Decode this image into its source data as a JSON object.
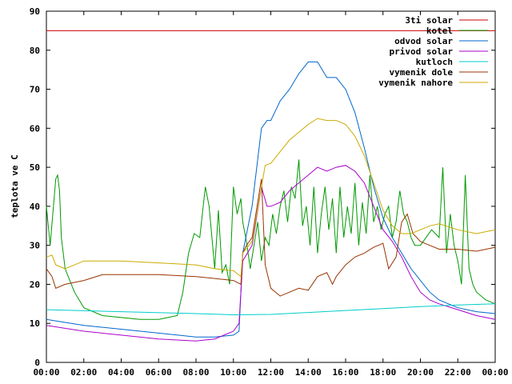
{
  "chart_data": {
    "type": "line",
    "title": "",
    "xlabel": "",
    "ylabel": "teplota ve C",
    "xlim": [
      0,
      24
    ],
    "ylim": [
      0,
      90
    ],
    "x_ticks": [
      0,
      2,
      4,
      6,
      8,
      10,
      12,
      14,
      16,
      18,
      20,
      22,
      24
    ],
    "x_tick_labels": [
      "00:00",
      "02:00",
      "04:00",
      "06:00",
      "08:00",
      "10:00",
      "12:00",
      "14:00",
      "16:00",
      "18:00",
      "20:00",
      "22:00",
      "00:00"
    ],
    "y_ticks": [
      0,
      10,
      20,
      30,
      40,
      50,
      60,
      70,
      80,
      90
    ],
    "grid": false,
    "legend_position": "top-right",
    "series": [
      {
        "name": "3ti solar",
        "color": "#cc0000",
        "x": [
          0,
          24
        ],
        "y": [
          85,
          85
        ]
      },
      {
        "name": "kotel",
        "color": "#009900",
        "x": [
          0,
          0.2,
          0.5,
          0.6,
          0.7,
          0.8,
          1.0,
          1.5,
          2.0,
          3.0,
          4.0,
          5.0,
          6.0,
          6.5,
          7.0,
          7.3,
          7.6,
          7.9,
          8.2,
          8.5,
          8.7,
          9.0,
          9.2,
          9.4,
          9.6,
          9.8,
          10.0,
          10.2,
          10.4,
          10.5,
          10.7,
          10.9,
          11.1,
          11.3,
          11.5,
          11.7,
          11.9,
          12.1,
          12.3,
          12.5,
          12.7,
          12.9,
          13.1,
          13.3,
          13.5,
          13.7,
          13.9,
          14.1,
          14.3,
          14.5,
          14.7,
          14.9,
          15.1,
          15.3,
          15.5,
          15.7,
          15.9,
          16.1,
          16.3,
          16.5,
          16.7,
          16.9,
          17.1,
          17.3,
          17.5,
          17.7,
          17.9,
          18.1,
          18.3,
          18.5,
          18.7,
          18.9,
          19.1,
          19.3,
          19.5,
          19.7,
          20.0,
          20.3,
          20.6,
          20.8,
          21.0,
          21.2,
          21.4,
          21.6,
          21.8,
          22.0,
          22.2,
          22.4,
          22.6,
          22.8,
          23.0,
          23.5,
          24.0
        ],
        "y": [
          40,
          30,
          47,
          48,
          44,
          32,
          24,
          18,
          14,
          12,
          11.5,
          11,
          11,
          11.5,
          12,
          18,
          28,
          33,
          32,
          45,
          40,
          24,
          39,
          23,
          25,
          20,
          45,
          38,
          42,
          36,
          31,
          24,
          30,
          36,
          26,
          32,
          30,
          38,
          33,
          40,
          44,
          36,
          45,
          42,
          52,
          35,
          40,
          30,
          45,
          28,
          38,
          45,
          34,
          42,
          28,
          45,
          32,
          40,
          33,
          46,
          30,
          41,
          33,
          48,
          36,
          40,
          34,
          38,
          40,
          32,
          36,
          44,
          38,
          36,
          32,
          30,
          30,
          32,
          34,
          33,
          32,
          50,
          28,
          38,
          30,
          26,
          20,
          48,
          24,
          20,
          18,
          16,
          15
        ]
      },
      {
        "name": "odvod solar",
        "color": "#0066cc",
        "x": [
          0,
          2,
          4,
          6,
          8,
          9,
          10,
          10.3,
          10.5,
          11.0,
          11.5,
          11.8,
          12.0,
          12.2,
          12.5,
          13.0,
          13.5,
          14.0,
          14.5,
          15.0,
          15.5,
          16.0,
          16.5,
          17.0,
          17.5,
          18.0,
          18.5,
          19.0,
          19.5,
          20.0,
          20.5,
          21.0,
          22.0,
          23.0,
          24.0
        ],
        "y": [
          11,
          9.5,
          8.5,
          7.5,
          6.5,
          6.5,
          7,
          8,
          28,
          40,
          60,
          62,
          62,
          64,
          67,
          70,
          74,
          77,
          77,
          73,
          73,
          70,
          64,
          55,
          45,
          37,
          32,
          28,
          24,
          21,
          18,
          16,
          14,
          13,
          12.5
        ]
      },
      {
        "name": "privod solar",
        "color": "#aa00cc",
        "x": [
          0,
          2,
          4,
          6,
          8,
          9,
          10,
          10.3,
          10.5,
          11.0,
          11.5,
          11.8,
          12.0,
          12.5,
          13.0,
          13.5,
          14.0,
          14.5,
          15.0,
          15.5,
          16.0,
          16.5,
          17.0,
          17.5,
          18.0,
          18.5,
          19.0,
          19.5,
          20.0,
          20.5,
          21.0,
          22.0,
          23.0,
          24.0
        ],
        "y": [
          9.5,
          8,
          7,
          6,
          5.5,
          6,
          8,
          10,
          26,
          30,
          45,
          40,
          40,
          41,
          44,
          46,
          48,
          50,
          49,
          50,
          50.5,
          49,
          46,
          40,
          34,
          31,
          27,
          22,
          18,
          16,
          15,
          13.5,
          12,
          11
        ]
      },
      {
        "name": "kutloch",
        "color": "#00cccc",
        "x": [
          0,
          4,
          8,
          10,
          12,
          14,
          16,
          18,
          20,
          22,
          24
        ],
        "y": [
          13.5,
          13,
          12.5,
          12.2,
          12.3,
          12.8,
          13.3,
          13.8,
          14.3,
          14.7,
          15
        ]
      },
      {
        "name": "vymenik dole",
        "color": "#993300",
        "x": [
          0,
          0.3,
          0.5,
          1.0,
          2.0,
          3.0,
          4.0,
          6.0,
          8.0,
          9.0,
          10.0,
          10.4,
          10.5,
          10.7,
          11.0,
          11.2,
          11.5,
          11.7,
          12.0,
          12.5,
          13.0,
          13.5,
          14.0,
          14.5,
          15.0,
          15.3,
          15.5,
          16.0,
          16.5,
          17.0,
          17.5,
          18.0,
          18.3,
          18.7,
          19.0,
          19.3,
          19.6,
          20.0,
          20.5,
          21.0,
          22.0,
          23.0,
          24.0
        ],
        "y": [
          24,
          22,
          19,
          20,
          21,
          22.5,
          22.5,
          22.5,
          22,
          21.5,
          21,
          20,
          28,
          30,
          32,
          38,
          47,
          25,
          19,
          17,
          18,
          19,
          18.5,
          22,
          23,
          20,
          22,
          25,
          27,
          28,
          29.5,
          30.5,
          24,
          27,
          36,
          38,
          33,
          31,
          30,
          29,
          29,
          28.5,
          29.5
        ]
      },
      {
        "name": "vymenik nahore",
        "color": "#ccaa00",
        "x": [
          0,
          0.3,
          0.5,
          1.0,
          2.0,
          2.5,
          4.0,
          6.0,
          8.0,
          9.0,
          10.0,
          10.4,
          10.5,
          11.0,
          11.5,
          11.7,
          12.0,
          12.5,
          13.0,
          13.5,
          14.0,
          14.5,
          15.0,
          15.5,
          16.0,
          16.5,
          17.0,
          17.5,
          18.0,
          18.5,
          19.0,
          19.5,
          20.0,
          20.5,
          21.0,
          22.0,
          23.0,
          24.0
        ],
        "y": [
          27,
          27.5,
          25,
          24,
          26,
          26,
          26,
          25.5,
          25,
          24,
          23.5,
          22,
          28,
          31,
          45,
          50.5,
          51,
          54,
          57,
          59,
          61,
          62.5,
          62,
          62,
          61,
          58,
          53,
          46,
          39,
          35,
          33,
          33,
          34,
          35,
          35.5,
          34,
          33,
          34
        ]
      }
    ]
  }
}
